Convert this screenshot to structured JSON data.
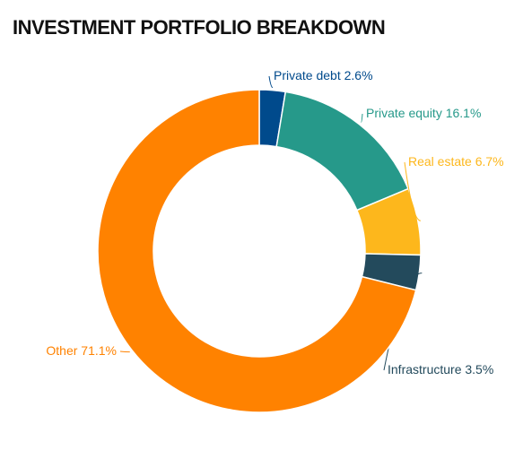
{
  "chart_data": {
    "type": "donut",
    "title": "INVESTMENT PORTFOLIO BREAKDOWN",
    "categories": [
      "Private debt",
      "Private equity",
      "Real estate",
      "Infrastructure",
      "Other"
    ],
    "values": [
      2.6,
      16.1,
      6.7,
      3.5,
      71.1
    ],
    "value_labels": [
      "2.6%",
      "16.1%",
      "6.7%",
      "3.5%",
      "71.1%"
    ],
    "colors": [
      "#004a8c",
      "#26998a",
      "#fdb71c",
      "#234a5c",
      "#ff8200"
    ]
  }
}
